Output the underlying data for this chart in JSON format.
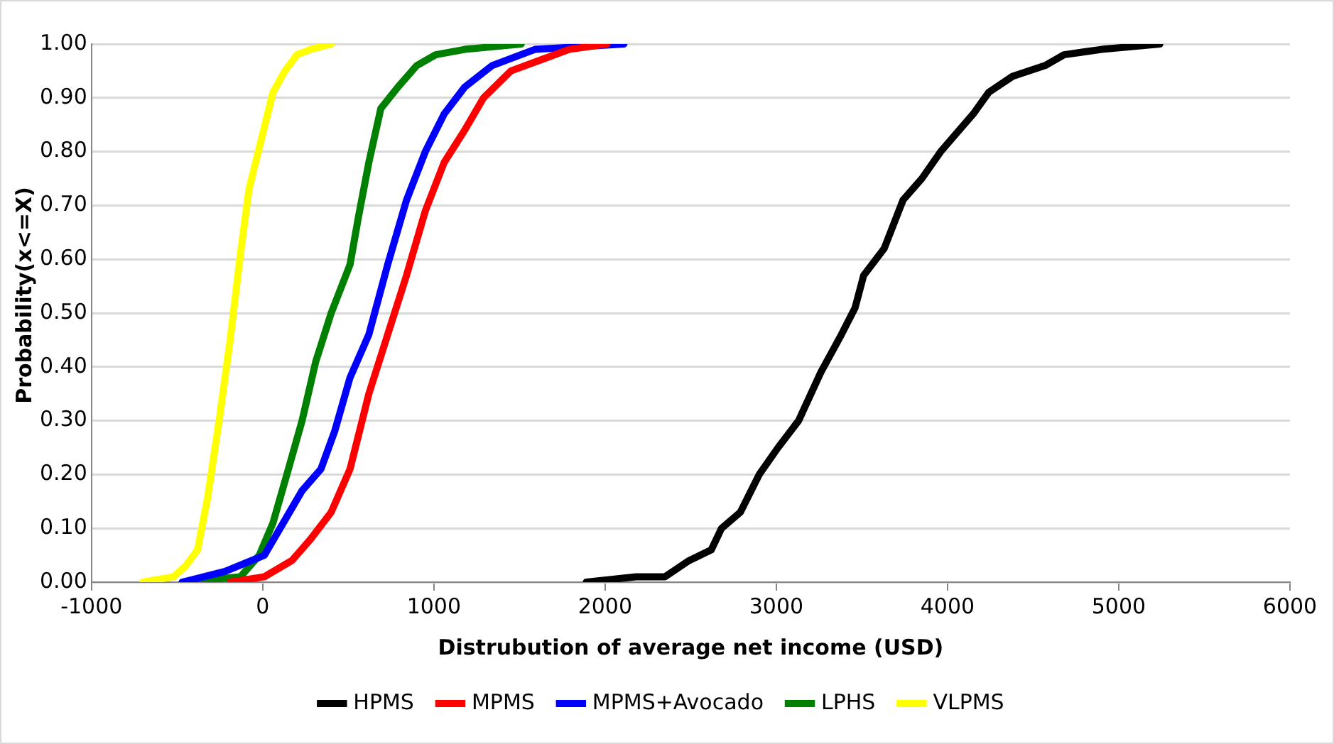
{
  "chart_data": {
    "type": "line",
    "xlabel": "Distrubution of average net income (USD)",
    "ylabel": "Probability(x<=X)",
    "xlim": [
      -1000,
      6000
    ],
    "xticks": [
      -1000,
      0,
      1000,
      2000,
      3000,
      4000,
      5000,
      6000
    ],
    "ylim": [
      0,
      1
    ],
    "yticks": [
      {
        "value": 0,
        "label": "0.00"
      },
      {
        "value": 0.1,
        "label": "0.10"
      },
      {
        "value": 0.2,
        "label": "0.20"
      },
      {
        "value": 0.3,
        "label": "0.30"
      },
      {
        "value": 0.4,
        "label": "0.40"
      },
      {
        "value": 0.5,
        "label": "0.50"
      },
      {
        "value": 0.6,
        "label": "0.60"
      },
      {
        "value": 0.7,
        "label": "0.70"
      },
      {
        "value": 0.8,
        "label": "0.80"
      },
      {
        "value": 0.9,
        "label": "0.90"
      },
      {
        "value": 1,
        "label": "1.00"
      }
    ],
    "grid": "y",
    "legend": "bottom",
    "marker": "none",
    "line_style": "solid",
    "series": [
      {
        "name": "HPMS",
        "color": "#000000",
        "x": [
          1890,
          2180,
          2350,
          2490,
          2620,
          2680,
          2790,
          2900,
          3010,
          3130,
          3260,
          3380,
          3460,
          3510,
          3630,
          3740,
          3850,
          3960,
          4150,
          4240,
          4380,
          4570,
          4680,
          4900,
          5240
        ],
        "values": [
          0,
          0.01,
          0.01,
          0.04,
          0.06,
          0.1,
          0.13,
          0.2,
          0.25,
          0.3,
          0.39,
          0.46,
          0.51,
          0.57,
          0.62,
          0.71,
          0.75,
          0.8,
          0.87,
          0.91,
          0.94,
          0.96,
          0.98,
          0.99,
          1
        ]
      },
      {
        "name": "MPMS",
        "color": "#ff0000",
        "x": [
          -190,
          10,
          170,
          280,
          400,
          510,
          620,
          730,
          840,
          950,
          1060,
          1180,
          1290,
          1450,
          1620,
          1790,
          2010
        ],
        "values": [
          0,
          0.01,
          0.04,
          0.08,
          0.13,
          0.21,
          0.35,
          0.46,
          0.57,
          0.69,
          0.78,
          0.84,
          0.9,
          0.95,
          0.97,
          0.99,
          1
        ]
      },
      {
        "name": "MPMS+Avocado",
        "color": "#0000ff",
        "x": [
          -470,
          -220,
          10,
          120,
          230,
          340,
          420,
          510,
          620,
          730,
          840,
          950,
          1060,
          1180,
          1340,
          1590,
          2110
        ],
        "values": [
          0,
          0.02,
          0.05,
          0.11,
          0.17,
          0.21,
          0.28,
          0.38,
          0.46,
          0.59,
          0.71,
          0.8,
          0.87,
          0.92,
          0.96,
          0.99,
          1
        ]
      },
      {
        "name": "LPHS",
        "color": "#008000",
        "x": [
          -470,
          -130,
          -20,
          60,
          150,
          230,
          310,
          400,
          510,
          560,
          620,
          690,
          790,
          900,
          1010,
          1180,
          1510
        ],
        "values": [
          0,
          0.01,
          0.05,
          0.11,
          0.21,
          0.3,
          0.41,
          0.5,
          0.59,
          0.68,
          0.78,
          0.88,
          0.92,
          0.96,
          0.98,
          0.99,
          1
        ]
      },
      {
        "name": "VLPMS",
        "color": "#ffff00",
        "x": [
          -700,
          -520,
          -450,
          -380,
          -320,
          -250,
          -190,
          -130,
          -80,
          -10,
          60,
          130,
          200,
          280,
          400
        ],
        "values": [
          0,
          0.01,
          0.03,
          0.06,
          0.16,
          0.31,
          0.45,
          0.61,
          0.73,
          0.82,
          0.91,
          0.95,
          0.98,
          0.99,
          1
        ]
      }
    ]
  }
}
